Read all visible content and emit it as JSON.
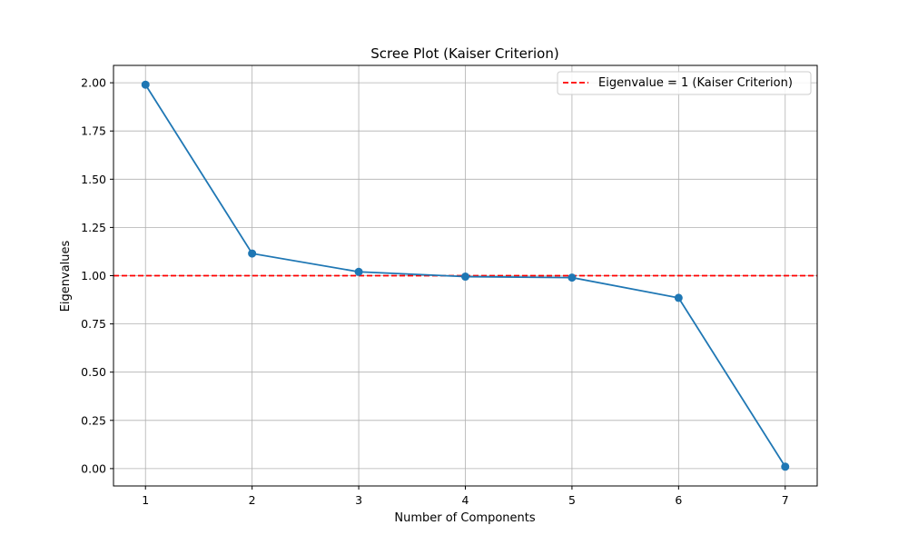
{
  "chart_data": {
    "type": "line",
    "title": "Scree Plot (Kaiser Criterion)",
    "xlabel": "Number of Components",
    "ylabel": "Eigenvalues",
    "x": [
      1,
      2,
      3,
      4,
      5,
      6,
      7
    ],
    "series": [
      {
        "values": [
          1.99,
          1.115,
          1.02,
          0.995,
          0.99,
          0.885,
          0.01
        ],
        "color": "#1f77b4",
        "marker": "circle"
      }
    ],
    "reference_line": {
      "y": 1.0,
      "label": "Eigenvalue = 1 (Kaiser Criterion)",
      "color": "#ff0000",
      "style": "dashed"
    },
    "xlim": [
      0.7,
      7.3
    ],
    "ylim": [
      -0.09,
      2.09
    ],
    "xticks": [
      "1",
      "2",
      "3",
      "4",
      "5",
      "6",
      "7"
    ],
    "yticks": [
      "0.00",
      "0.25",
      "0.50",
      "0.75",
      "1.00",
      "1.25",
      "1.50",
      "1.75",
      "2.00"
    ],
    "grid": true,
    "legend_position": "top-right"
  }
}
